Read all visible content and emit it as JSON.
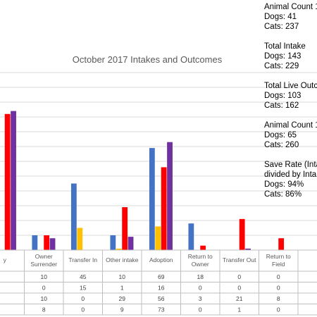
{
  "chart_data": {
    "type": "bar",
    "title": "October 2017 Intakes and Outcomes",
    "categories": [
      "y",
      "Owner Surrender",
      "Transfer In",
      "Other intake",
      "Adoption",
      "Return to Owner",
      "Transfer Out",
      "Return to Field",
      ""
    ],
    "category_lines": [
      [
        "y"
      ],
      [
        "Owner",
        "Surrender"
      ],
      [
        "Transfer In"
      ],
      [
        "Other intake"
      ],
      [
        "Adoption"
      ],
      [
        "Return to",
        "Owner"
      ],
      [
        "Transfer Out"
      ],
      [
        "Return to",
        "Field"
      ],
      [
        ""
      ]
    ],
    "ylim": [
      0,
      120
    ],
    "series": [
      {
        "color": "#4472c4",
        "values": [
          null,
          10,
          45,
          10,
          69,
          18,
          0,
          0,
          null
        ]
      },
      {
        "color": "#ffc000",
        "values": [
          null,
          0,
          15,
          1,
          16,
          0,
          0,
          0,
          null
        ]
      },
      {
        "color": "#ff0000",
        "values": [
          92,
          10,
          0,
          29,
          56,
          3,
          21,
          8,
          null
        ]
      },
      {
        "color": "#7030a0",
        "values": [
          94,
          8,
          0,
          9,
          73,
          0,
          1,
          0,
          null
        ]
      }
    ],
    "table": {
      "rows": [
        [
          "",
          "10",
          "45",
          "10",
          "69",
          "18",
          "0",
          "0",
          ""
        ],
        [
          "",
          "0",
          "15",
          "1",
          "16",
          "0",
          "0",
          "0",
          ""
        ],
        [
          "",
          "10",
          "0",
          "29",
          "56",
          "3",
          "21",
          "8",
          ""
        ],
        [
          "",
          "8",
          "0",
          "9",
          "73",
          "0",
          "1",
          "0",
          ""
        ]
      ]
    }
  },
  "side_panel": [
    {
      "lines": [
        "Animal Count 1",
        "Dogs: 41",
        "Cats: 237"
      ]
    },
    {
      "lines": [
        "Total Intake",
        "Dogs: 143",
        "Cats: 229"
      ]
    },
    {
      "lines": [
        "Total Live Outco",
        "Dogs: 103",
        "Cats: 162"
      ]
    },
    {
      "lines": [
        "Animal Count 1",
        "Dogs: 65",
        "Cats: 260"
      ]
    },
    {
      "lines": [
        "Save Rate (Inta",
        "divided by Inta",
        "Dogs: 94%",
        "Cats: 86%"
      ]
    }
  ]
}
